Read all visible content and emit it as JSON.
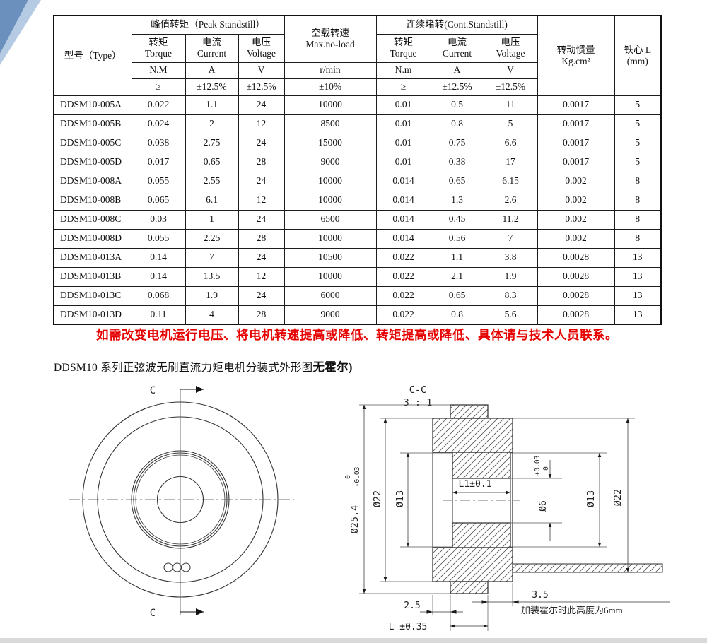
{
  "document": {
    "warning": "如需改变电机运行电压、将电机转速提高或降低、转矩提高或降低、具体请与技术人员联系。",
    "drawing_title": "DDSM10 系列正弦波无刷直流力矩电机分装式外形图",
    "drawing_title_bold": "无霍尔)"
  },
  "table": {
    "type_header": "型号（Type）",
    "groups": {
      "peak": "峰值转矩（Peak Standstill）",
      "noload": "空载转速\nMax.no-load",
      "cont": "连续堵转(Cont.Standstill)",
      "inertia": "转动惯量\nKg.cm²",
      "core": "铁心 L\n(mm)"
    },
    "subheaders": [
      "转矩\nTorque",
      "电流\nCurrent",
      "电压\nVoltage",
      "转矩\nTorque",
      "电流\nCurrent",
      "电压\nVoltage"
    ],
    "units": [
      "N.M",
      "A",
      "V",
      "r/min",
      "N.m",
      "A",
      "V"
    ],
    "tolerances": [
      "≥",
      "±12.5%",
      "±12.5%",
      "±10%",
      "≥",
      "±12.5%",
      "±12.5%"
    ],
    "rows": [
      [
        "DDSM10-005A",
        "0.022",
        "1.1",
        "24",
        "10000",
        "0.01",
        "0.5",
        "11",
        "0.0017",
        "5"
      ],
      [
        "DDSM10-005B",
        "0.024",
        "2",
        "12",
        "8500",
        "0.01",
        "0.8",
        "5",
        "0.0017",
        "5"
      ],
      [
        "DDSM10-005C",
        "0.038",
        "2.75",
        "24",
        "15000",
        "0.01",
        "0.75",
        "6.6",
        "0.0017",
        "5"
      ],
      [
        "DDSM10-005D",
        "0.017",
        "0.65",
        "28",
        "9000",
        "0.01",
        "0.38",
        "17",
        "0.0017",
        "5"
      ],
      [
        "DDSM10-008A",
        "0.055",
        "2.55",
        "24",
        "10000",
        "0.014",
        "0.65",
        "6.15",
        "0.002",
        "8"
      ],
      [
        "DDSM10-008B",
        "0.065",
        "6.1",
        "12",
        "10000",
        "0.014",
        "1.3",
        "2.6",
        "0.002",
        "8"
      ],
      [
        "DDSM10-008C",
        "0.03",
        "1",
        "24",
        "6500",
        "0.014",
        "0.45",
        "11.2",
        "0.002",
        "8"
      ],
      [
        "DDSM10-008D",
        "0.055",
        "2.25",
        "28",
        "10000",
        "0.014",
        "0.56",
        "7",
        "0.002",
        "8"
      ],
      [
        "DDSM10-013A",
        "0.14",
        "7",
        "24",
        "10500",
        "0.022",
        "1.1",
        "3.8",
        "0.0028",
        "13"
      ],
      [
        "DDSM10-013B",
        "0.14",
        "13.5",
        "12",
        "10000",
        "0.022",
        "2.1",
        "1.9",
        "0.0028",
        "13"
      ],
      [
        "DDSM10-013C",
        "0.068",
        "1.9",
        "24",
        "6000",
        "0.022",
        "0.65",
        "8.3",
        "0.0028",
        "13"
      ],
      [
        "DDSM10-013D",
        "0.11",
        "4",
        "28",
        "9000",
        "0.022",
        "0.8",
        "5.6",
        "0.0028",
        "13"
      ]
    ]
  },
  "drawing": {
    "cut_letter": "C",
    "section_name": "C-C",
    "section_scale": "3 : 1",
    "dia_254": "Ø25.4",
    "dia_254_tol_up": "0",
    "dia_254_tol_dn": "-0.03",
    "dia_22_left": "Ø22",
    "dia_13_left": "Ø13",
    "l1": "L1±0.1",
    "dia_6": "Ø6",
    "dia_6_tol_up": "+0.03",
    "dia_6_tol_dn": "0",
    "dia_13_right": "Ø13",
    "dia_22_right": "Ø22",
    "dim_25": "2.5",
    "dim_l": "L ±0.35",
    "dim_35": "3.5",
    "hall_note": "加装霍尔时此高度为6mm"
  },
  "colors": {
    "warning_red": "#e60000",
    "ribbon_dark": "#6b90bd",
    "ribbon_light": "#b5cbe4"
  }
}
